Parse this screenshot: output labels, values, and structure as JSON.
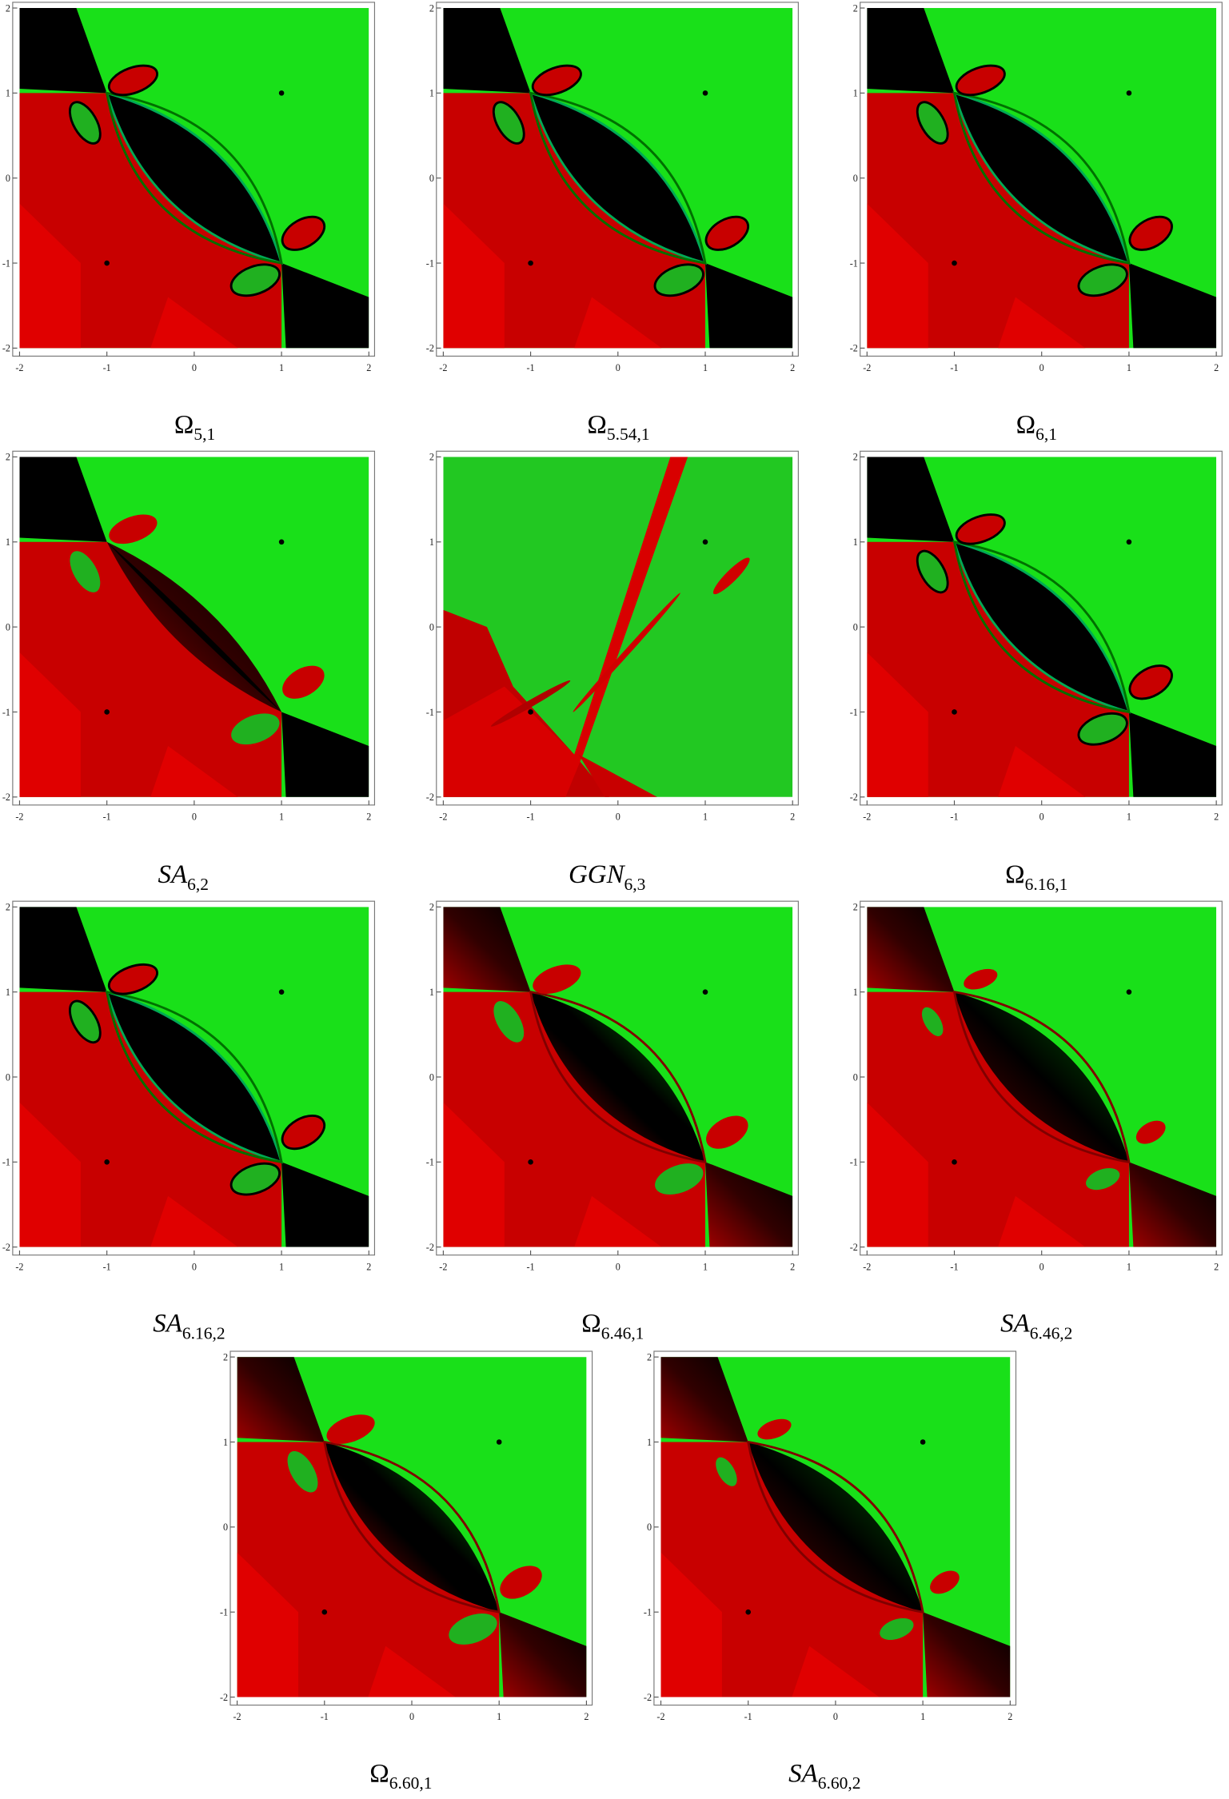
{
  "axes": {
    "xlim": [
      -2,
      2
    ],
    "ylim": [
      -2,
      2
    ],
    "xticks": [
      -2,
      -1,
      0,
      1,
      2
    ],
    "yticks": [
      -2,
      -1,
      0,
      1,
      2
    ]
  },
  "points": {
    "x": [
      1,
      -1
    ],
    "y": [
      1,
      -1
    ]
  },
  "panels": [
    {
      "label": {
        "base": "Ω",
        "sub": "5,1"
      }
    },
    {
      "label": {
        "base": "Ω",
        "sub": "5.54,1"
      }
    },
    {
      "label": {
        "base": "Ω",
        "sub": "6,1"
      }
    },
    {
      "label": {
        "base": "SA",
        "sub": "6,2"
      }
    },
    {
      "label": {
        "base": "GGN",
        "sub": "6,3"
      }
    },
    {
      "label": {
        "base": "Ω",
        "sub": "6.16,1"
      }
    },
    {
      "label": {
        "base": "SA",
        "sub": "6.16,2"
      }
    },
    {
      "label": {
        "base": "Ω",
        "sub": "6.46,1"
      }
    },
    {
      "label": {
        "base": "SA",
        "sub": "6.46,2"
      }
    },
    {
      "label": {
        "base": "Ω",
        "sub": "6.60,1"
      }
    },
    {
      "label": {
        "base": "SA",
        "sub": "6.60,2"
      }
    }
  ]
}
